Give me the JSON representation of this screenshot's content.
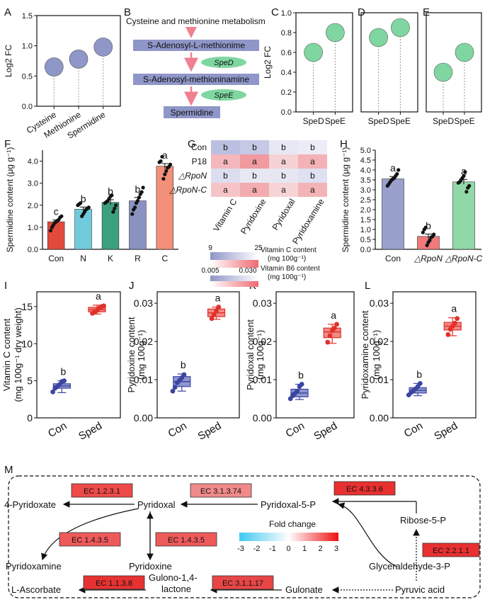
{
  "panel_letters": [
    "A",
    "B",
    "C",
    "D",
    "E",
    "F",
    "G",
    "H",
    "I",
    "J",
    "K",
    "L",
    "M"
  ],
  "pathway_b": {
    "title": "Cysteine and methionine metabolism",
    "nodes": [
      "S-Adenosyl-L-methionime",
      "S-Adenosyl-methioninamine",
      "Spermidine"
    ],
    "enzymes": [
      "SpeD",
      "SpeE"
    ]
  },
  "heatmap_labels": {
    "legend_vitc": "Vitamin  C content",
    "legend_vitc_unit": "(mg 100g⁻¹)",
    "legend_vitb6": "Vitamin B6 content",
    "legend_vitb6_unit": "(mg 100g⁻¹)",
    "vitc_min": "9",
    "vitc_max": "25",
    "vitb6_min": "0.005",
    "vitb6_max": "0.030"
  },
  "pathway_m": {
    "nodes": [
      "4-Pyridoxate",
      "Pyridoxal",
      "Pyridoxal-5-P",
      "Ribose-5-P",
      "Pyridoxamine",
      "Pyridoxine",
      "Glyceraldehyde-3-P",
      "L-Ascorbate",
      "Gulono-1,4-",
      "lactone",
      "Gulonate",
      "Pyruvic acid"
    ],
    "enzymes": [
      "EC 1.2.3.1",
      "EC 3.1.3.74",
      "EC 4.3.3.6",
      "EC 1.4.3.5",
      "EC 1.4.3.5",
      "EC 2.2.1.1",
      "EC 1.1.3.8",
      "EC 3.1.1.17"
    ],
    "enzyme_colors": [
      "#ee4a4a",
      "#f08a8a",
      "#e83030",
      "#ee5a5a",
      "#ee5a5a",
      "#e83030",
      "#e63232",
      "#e84646"
    ],
    "legend_title": "Fold change",
    "legend_ticks": [
      "-3",
      "-2",
      "-1",
      "0",
      "1",
      "2",
      "3"
    ]
  },
  "chart_data": [
    {
      "panel": "A",
      "type": "lollipop",
      "ylabel": "Log2 FC",
      "categories": [
        "Cysteine",
        "Methionine",
        "Spermidine"
      ],
      "values": [
        0.65,
        0.78,
        0.98
      ],
      "ylim": [
        0,
        1.5
      ],
      "yticks": [
        "0.0",
        "0.5",
        "1.0",
        "1.5"
      ],
      "color": "#8f96c8"
    },
    {
      "panel": "C",
      "type": "lollipop",
      "ylabel": "Log2 FC",
      "categories": [
        "SpeD",
        "SpeE"
      ],
      "values": [
        0.6,
        0.8
      ],
      "ylim": [
        0,
        1.0
      ],
      "yticks": [
        "0.0",
        "0.2",
        "0.4",
        "0.6",
        "0.8",
        "1.0"
      ],
      "color": "#7fd6a0"
    },
    {
      "panel": "D",
      "type": "lollipop",
      "categories": [
        "SpeD",
        "SpeE"
      ],
      "values": [
        0.75,
        0.85
      ],
      "ylim": [
        0,
        1.0
      ],
      "color": "#7fd6a0"
    },
    {
      "panel": "E",
      "type": "lollipop",
      "categories": [
        "SpeD",
        "SpeE"
      ],
      "values": [
        0.4,
        0.6
      ],
      "ylim": [
        0,
        1.0
      ],
      "color": "#7fd6a0"
    },
    {
      "panel": "F",
      "type": "bar",
      "ylabel": "Spermidine content (μg g⁻¹)",
      "categories": [
        "Con",
        "N",
        "K",
        "R",
        "C"
      ],
      "values": [
        1.25,
        1.82,
        2.13,
        2.2,
        3.77
      ],
      "errors": [
        0.08,
        0.1,
        0.12,
        0.15,
        0.12
      ],
      "letters": [
        "c",
        "b",
        "b",
        "b",
        "a"
      ],
      "colors": [
        "#e24a3b",
        "#72cbdc",
        "#3aa080",
        "#8a92c2",
        "#f2907a"
      ],
      "points": [
        [
          0.85,
          1.0,
          1.1,
          1.2,
          1.25,
          1.3,
          1.35,
          1.45,
          1.5
        ],
        [
          1.5,
          1.6,
          1.7,
          1.8,
          1.85,
          1.9,
          2.0,
          2.05,
          2.1
        ],
        [
          1.7,
          1.85,
          2.0,
          2.1,
          2.15,
          2.2,
          2.3,
          2.4,
          2.45
        ],
        [
          1.6,
          1.8,
          1.9,
          2.1,
          2.2,
          2.35,
          2.5,
          2.6,
          2.8
        ],
        [
          3.2,
          3.4,
          3.55,
          3.7,
          3.75,
          3.85,
          3.95,
          4.0,
          4.2
        ]
      ],
      "ylim": [
        0,
        4.5
      ],
      "yticks": [
        "0.0",
        "1.0",
        "2.0",
        "3.0",
        "4.0"
      ]
    },
    {
      "panel": "G",
      "type": "heatmap",
      "rows": [
        "Con",
        "P18",
        "△RpoN",
        "△RpoN-C"
      ],
      "columns": [
        "Vitamin C",
        "Pyridoxine",
        "Pyridoxal",
        "Pyridoxamine"
      ],
      "letters": [
        [
          "b",
          "b",
          "b",
          "b"
        ],
        [
          "a",
          "a",
          "a",
          "a"
        ],
        [
          "b",
          "b",
          "b",
          "b"
        ],
        [
          "a",
          "a",
          "a",
          "a"
        ]
      ],
      "colors": [
        [
          "#bcc0e0",
          "#c5c9e6",
          "#e8e8f4",
          "#ececf6"
        ],
        [
          "#f4b8bc",
          "#f19aa0",
          "#f6d2d4",
          "#f3b2b6"
        ],
        [
          "#dcdef0",
          "#e7e8f4",
          "#e6e7f3",
          "#dfe0f1"
        ],
        [
          "#f6c4c7",
          "#f2acb0",
          "#f6d4d6",
          "#f3b4b8"
        ]
      ]
    },
    {
      "panel": "H",
      "type": "bar",
      "ylabel": "Spermidine content (μg g⁻¹)",
      "categories": [
        "Con",
        "△RpoN",
        "△RpoN-C"
      ],
      "values": [
        3.55,
        0.65,
        3.4
      ],
      "errors": [
        0.12,
        0.12,
        0.12
      ],
      "letters": [
        "a",
        "b",
        "a"
      ],
      "colors": [
        "#9aa0cc",
        "#f07a7a",
        "#90d8a8"
      ],
      "points": [
        [
          3.2,
          3.3,
          3.4,
          3.5,
          3.55,
          3.6,
          3.7,
          3.8,
          4.0
        ],
        [
          0.2,
          0.35,
          0.45,
          0.6,
          0.65,
          0.75,
          0.85,
          1.0,
          1.1
        ],
        [
          2.9,
          3.1,
          3.2,
          3.35,
          3.4,
          3.5,
          3.6,
          3.7,
          3.9
        ]
      ],
      "ylim": [
        0,
        5.0
      ],
      "yticks": [
        "0.0",
        "0.5",
        "1.0",
        "1.5",
        "2.0",
        "2.5",
        "3.0",
        "3.5",
        "4.0",
        "4.5",
        "5.0"
      ]
    },
    {
      "panel": "I",
      "type": "box",
      "ylabel": "Vitamin C content",
      "ylabel2": "(mg 100g⁻¹ dry weight)",
      "categories": [
        "Con",
        "Sped"
      ],
      "letters": [
        "b",
        "a"
      ],
      "box": [
        [
          4.0,
          4.3,
          4.6
        ],
        [
          14.3,
          14.6,
          14.9
        ]
      ],
      "whisker": [
        [
          3.4,
          5.0
        ],
        [
          14.0,
          15.2
        ]
      ],
      "points": [
        [
          3.5,
          4.0,
          4.2,
          4.5,
          4.9,
          5.0
        ],
        [
          14.1,
          14.3,
          14.5,
          14.8,
          15.0,
          15.1
        ]
      ],
      "ylim": [
        0,
        17
      ],
      "yticks": [
        "0",
        "5",
        "10",
        "15"
      ],
      "colors": [
        "#3b45a0",
        "#e0302a"
      ]
    },
    {
      "panel": "J",
      "type": "box",
      "ylabel": "Pyridoxine content",
      "ylabel2": "(mg 100g⁻¹)",
      "categories": [
        "Con",
        "Sped"
      ],
      "letters": [
        "b",
        "a"
      ],
      "box": [
        [
          0.0082,
          0.0095,
          0.0108
        ],
        [
          0.0265,
          0.0275,
          0.0285
        ]
      ],
      "whisker": [
        [
          0.007,
          0.0115
        ],
        [
          0.0258,
          0.029
        ]
      ],
      "points": [
        [
          0.007,
          0.008,
          0.0092,
          0.0098,
          0.0105,
          0.0113
        ],
        [
          0.026,
          0.027,
          0.028,
          0.029
        ]
      ],
      "ylim": [
        0,
        0.033
      ],
      "yticks": [
        "0.00",
        "0.01",
        "0.02",
        "0.03"
      ],
      "colors": [
        "#3b45a0",
        "#e0302a"
      ]
    },
    {
      "panel": "K",
      "type": "box",
      "ylabel": "Pyridoxal content",
      "ylabel2": "(mg 100g⁻¹)",
      "categories": [
        "Con",
        "Sped"
      ],
      "letters": [
        "b",
        "a"
      ],
      "box": [
        [
          0.0055,
          0.0065,
          0.0075
        ],
        [
          0.021,
          0.0225,
          0.0235
        ]
      ],
      "whisker": [
        [
          0.0048,
          0.0088
        ],
        [
          0.0195,
          0.0245
        ]
      ],
      "points": [
        [
          0.005,
          0.0058,
          0.0064,
          0.007,
          0.0082,
          0.0088
        ],
        [
          0.0198,
          0.0215,
          0.0228,
          0.0235,
          0.0245
        ]
      ],
      "ylim": [
        0,
        0.033
      ],
      "yticks": [
        "0.00",
        "0.01",
        "0.02",
        "0.03"
      ],
      "colors": [
        "#3b45a0",
        "#e0302a"
      ]
    },
    {
      "panel": "L",
      "type": "box",
      "ylabel": "Pyridoxamine content",
      "ylabel2": "(mg 100g⁻¹)",
      "categories": [
        "Con",
        "Sped"
      ],
      "letters": [
        "b",
        "a"
      ],
      "box": [
        [
          0.0065,
          0.0072,
          0.0079
        ],
        [
          0.023,
          0.024,
          0.025
        ]
      ],
      "whisker": [
        [
          0.0058,
          0.009
        ],
        [
          0.0215,
          0.0262
        ]
      ],
      "points": [
        [
          0.006,
          0.0066,
          0.0071,
          0.0076,
          0.0082,
          0.009
        ],
        [
          0.0218,
          0.0232,
          0.024,
          0.0248,
          0.026
        ]
      ],
      "ylim": [
        0,
        0.033
      ],
      "yticks": [
        "0.00",
        "0.01",
        "0.02",
        "0.03"
      ],
      "colors": [
        "#3b45a0",
        "#e0302a"
      ]
    }
  ]
}
